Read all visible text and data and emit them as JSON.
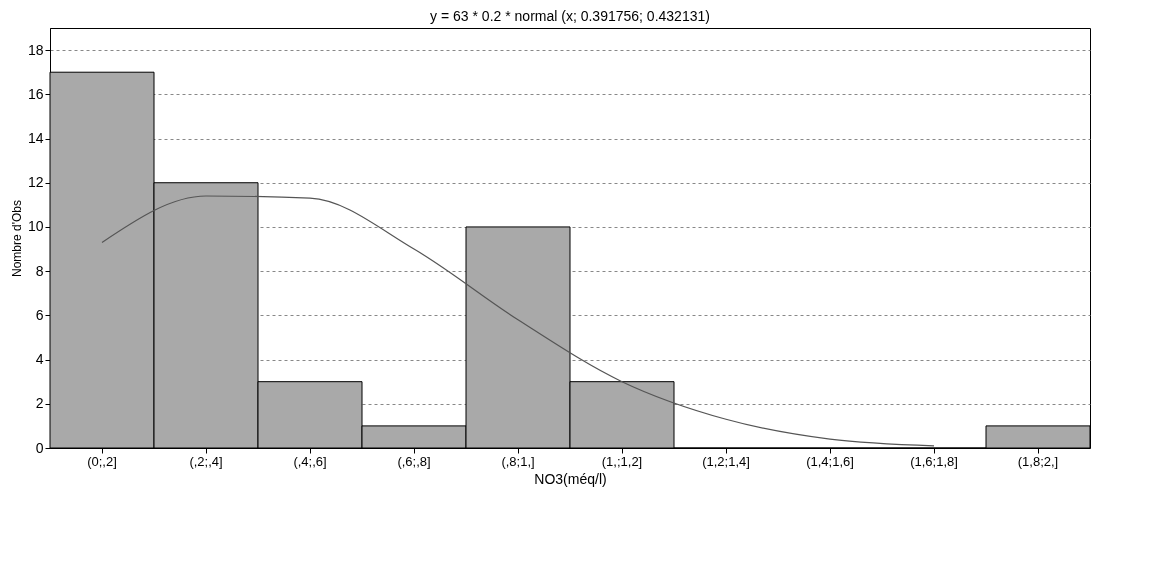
{
  "chart_data": {
    "type": "bar",
    "title": "y = 63 * 0.2 * normal (x; 0.391756; 0.432131)",
    "xlabel": "NO3(méq/l)",
    "ylabel": "Nombre d'Obs",
    "categories": [
      "(0;,2]",
      "(,2;,4]",
      "(,4;,6]",
      "(,6;,8]",
      "(,8;1,]",
      "(1,;1,2]",
      "(1,2;1,4]",
      "(1,4;1,6]",
      "(1,6;1,8]",
      "(1,8;2,]"
    ],
    "values": [
      17,
      12,
      3,
      1,
      10,
      3,
      0,
      0,
      0,
      1
    ],
    "color": "#a9a9a9",
    "series": [
      {
        "type": "line",
        "color": "#555555",
        "x": [
          "(0;,2]",
          "(,2;,4]",
          "(,4;,6]",
          "(,6;,8]",
          "(,8;1,]",
          "(1,;1,2]",
          "(1,2;1,4]",
          "(1,4;1,6]",
          "(1,6;1,8]"
        ],
        "values": [
          9.3,
          11.4,
          11.3,
          9.0,
          5.8,
          3.0,
          1.3,
          0.4,
          0.1
        ]
      }
    ],
    "ylim": [
      0,
      19
    ],
    "yticks": [
      0,
      2,
      4,
      6,
      8,
      10,
      12,
      14,
      16,
      18
    ],
    "grid": "y"
  }
}
